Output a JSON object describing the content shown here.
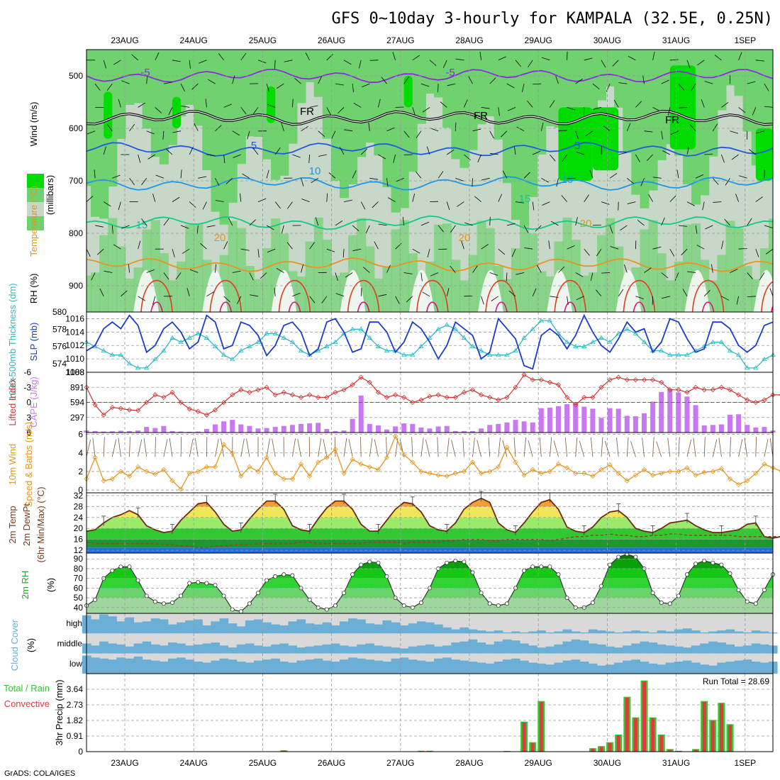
{
  "page": {
    "title": "GFS 0~10day 3-hourly for KAMPALA (32.5E, 0.25N)",
    "credit": "GrADS: COLA/IGES"
  },
  "colors": {
    "rh_dark": "#00dc00",
    "rh_mid": "#6fd26f",
    "rh_light": "#c8d8c8",
    "rh_dry": "#eef5ee",
    "t_minus5": "#8a2be2",
    "t_5": "#1e5adc",
    "t_10": "#1e96e6",
    "t_15": "#14c88c",
    "t_20": "#e6961e",
    "t_25": "#e03c1e",
    "t_30": "#dc1478",
    "slp": "#1a3ccc",
    "thickness": "#30b8c8",
    "lifted": "#d23232",
    "cape": "#c878f0",
    "wind": "#e6961e",
    "barb": "#7a5a3a",
    "cloud": "#6baed6",
    "cloud_bg": "#d9d9d9",
    "precip_total": "#32c832",
    "precip_conv": "#dc3c3c"
  },
  "chart_data": [
    {
      "id": "upper-air",
      "type": "heatmap",
      "ylabel_rh": "RH (%)",
      "ylabel_temp": "Temperature (°C)",
      "ylabel_wind": "Wind (m/s)",
      "ylabel_axis": "(millibars)",
      "x_top_labels": [
        "23AUG",
        "24AUG",
        "25AUG",
        "26AUG",
        "27AUG",
        "28AUG",
        "29AUG",
        "30AUG",
        "31AUG",
        "1SEP"
      ],
      "y_ticks": [
        500,
        600,
        700,
        800,
        900
      ],
      "ylim": [
        450,
        950
      ],
      "isotherms": [
        {
          "label": "-5",
          "color_key": "t_minus5",
          "base_mb": 500
        },
        {
          "label": "FR",
          "color_key": "fr",
          "base_mb": 580
        },
        {
          "label": "5",
          "color_key": "t_5",
          "base_mb": 640
        },
        {
          "label": "10",
          "color_key": "t_10",
          "base_mb": 705
        },
        {
          "label": "15",
          "color_key": "t_15",
          "base_mb": 780
        },
        {
          "label": "20",
          "color_key": "t_20",
          "base_mb": 860
        }
      ],
      "contour_labels": [
        "-5",
        "-5",
        "FR",
        "FR",
        "FR",
        "5",
        "5",
        "10",
        "10",
        "15",
        "15",
        "20",
        "20",
        "20"
      ]
    },
    {
      "id": "slp-thickness",
      "type": "line",
      "ylabel_thickness": "1000-500mb Thickness (dm)",
      "ylabel_slp": "SLP (mb)",
      "left_ticks": [
        574,
        576,
        578,
        580
      ],
      "right_ticks": [
        1008,
        1010,
        1012,
        1014,
        1016
      ],
      "slp_ylim": [
        1008,
        1017
      ],
      "thickness_ylim": [
        573,
        580
      ],
      "slp_values": [
        1011.2,
        1012,
        1014.5,
        1015.5,
        1014.5,
        1016.5,
        1015,
        1011,
        1012,
        1014.5,
        1015.5,
        1014,
        1011.5,
        1012.5,
        1016.5,
        1015.5,
        1011.5,
        1012,
        1015.5,
        1015,
        1013.5,
        1010.5,
        1012,
        1015,
        1015.5,
        1014,
        1010.5,
        1011.5,
        1015.5,
        1016,
        1014,
        1011,
        1011.5,
        1015.5,
        1015.5,
        1014,
        1011,
        1012.5,
        1015.5,
        1014.5,
        1012.5,
        1010,
        1012,
        1015.5,
        1014.5,
        1013.5,
        1010,
        1011,
        1016,
        1014.5,
        1013,
        1009,
        1008.5,
        1013.5,
        1014.5,
        1013.5,
        1011.5,
        1013.5,
        1016.5,
        1014,
        1012,
        1011,
        1013,
        1015.5,
        1014,
        1014.5,
        1011,
        1012.5,
        1016,
        1015.5,
        1013,
        1011,
        1011.5,
        1015.5,
        1015.5,
        1014.5,
        1012,
        1011,
        1012,
        1015,
        1015.5
      ],
      "thickness_values": [
        576.5,
        576,
        575.5,
        575,
        575,
        574,
        573.5,
        573.5,
        574.5,
        575.5,
        577,
        576.5,
        577,
        577.5,
        577,
        576,
        575,
        574.5,
        575.5,
        576,
        576.5,
        577.5,
        577.5,
        577,
        576.5,
        575.5,
        575,
        575.5,
        576,
        576.5,
        577.5,
        578,
        578,
        577,
        576,
        575.5,
        575.5,
        575,
        575,
        576,
        577,
        578,
        578.5,
        578,
        577,
        576,
        575.5,
        575,
        575,
        575,
        575.5,
        577,
        578,
        579,
        579,
        577.5,
        576.5,
        576,
        576,
        576.5,
        577,
        576.5,
        577.5,
        578,
        577.5,
        576.5,
        575.5,
        575.5,
        575,
        575,
        575,
        575.5,
        576,
        576.5,
        576.5,
        575.5,
        575,
        573.5,
        573.5,
        574.5,
        575
      ]
    },
    {
      "id": "cape-lifted",
      "type": "bar",
      "ylabel_lifted": "Lifted Index",
      "ylabel_cape": "CAPE (J/kg)",
      "left_ticks": [
        "-6",
        "-3",
        "0",
        "3",
        "6"
      ],
      "right_ticks": [
        "297",
        "594",
        "891",
        "1188"
      ],
      "cape_ylim": [
        0,
        1188
      ],
      "cape_values": [
        40,
        30,
        20,
        25,
        35,
        30,
        40,
        110,
        90,
        130,
        30,
        20,
        15,
        20,
        70,
        160,
        220,
        250,
        160,
        130,
        80,
        90,
        110,
        130,
        150,
        170,
        180,
        190,
        70,
        30,
        40,
        270,
        730,
        170,
        140,
        60,
        120,
        180,
        170,
        100,
        80,
        120,
        130,
        30,
        30,
        30,
        80,
        150,
        170,
        200,
        250,
        220,
        200,
        480,
        490,
        520,
        560,
        570,
        510,
        470,
        290,
        480,
        470,
        330,
        320,
        380,
        610,
        800,
        860,
        790,
        710,
        540,
        140,
        150,
        160,
        350,
        360,
        150,
        100,
        110,
        40,
        60,
        80,
        110
      ],
      "lifted_values": [
        -3,
        0.5,
        2.5,
        1,
        1.2,
        1.5,
        1.6,
        0,
        -1.5,
        -1,
        -2,
        0,
        1.3,
        1.8,
        2.5,
        1.5,
        0,
        -1.5,
        -2.5,
        -2,
        -2.5,
        -3,
        -1.5,
        -2,
        -1.5,
        -1,
        -1.5,
        -1,
        -1,
        -2,
        -2.5,
        -3.5,
        -5,
        -4,
        -2,
        -1,
        -1.5,
        -1,
        0,
        -0.5,
        -1.2,
        -1.5,
        -1,
        -1,
        -2,
        -2.5,
        -1.5,
        -1,
        -0.5,
        -1,
        -3,
        -5.5,
        -4.5,
        -4.5,
        -4,
        -3.5,
        -1,
        0.5,
        -1,
        -1,
        -3,
        -4.5,
        -5,
        -4.5,
        -4.5,
        -4.5,
        -4.5,
        -4,
        -2.5,
        -2.5,
        -2,
        -3,
        -2.5,
        -2.5,
        -3,
        -2.5,
        -1.5,
        -0.5,
        0,
        -0.5,
        -1.5,
        -1.5,
        -1,
        -1,
        0
      ]
    },
    {
      "id": "wind10m",
      "type": "line",
      "ylabel_wind": "10m Wind",
      "ylabel_speed": "Speed & Barbs (m/s)",
      "left_ticks": [
        0,
        2,
        4,
        6
      ],
      "ylim": [
        -0.3,
        6.2
      ],
      "speed_values": [
        1.2,
        3.5,
        1.0,
        1.2,
        2.0,
        1.5,
        2.5,
        2.0,
        1.7,
        2.2,
        1.0,
        0.1,
        1.8,
        2.0,
        2.5,
        2.5,
        4.9,
        4.0,
        1.5,
        2.5,
        2.0,
        3.5,
        1.8,
        1.2,
        1.2,
        2.8,
        1.5,
        3.0,
        3.5,
        4.4,
        1.8,
        3.3,
        2.8,
        2.5,
        2.2,
        3.5,
        5.8,
        3.8,
        3.0,
        2.0,
        1.8,
        1.6,
        1.5,
        1.8,
        2.0,
        3.0,
        1.8,
        2.0,
        2.5,
        4.6,
        3.0,
        1.6,
        2.2,
        1.8,
        2.0,
        2.8,
        2.4,
        1.8,
        1.8,
        1.5,
        2.2,
        2.7,
        1.8,
        1.0,
        1.6,
        2.2,
        1.6,
        1.8,
        2.0,
        2.0,
        2.4,
        1.6,
        1.9,
        2.0,
        2.3,
        1.2,
        0.6,
        1.0,
        1.8,
        2.8,
        2.4,
        2.0,
        1.5
      ]
    },
    {
      "id": "temp2m",
      "type": "area",
      "ylabel_temp": "2m Temp",
      "ylabel_dew": "2m DewPt",
      "ylabel_minmax": "(6hr Min/Max) (°C)",
      "left_ticks": [
        12,
        16,
        20,
        24,
        28,
        32
      ],
      "ylim": [
        11,
        33
      ],
      "temp_values": [
        19,
        19.5,
        22,
        24,
        25,
        26.5,
        25,
        21,
        19.5,
        18.5,
        19,
        23,
        26,
        29,
        29.5,
        26,
        21.5,
        19,
        19.5,
        23.5,
        27,
        30,
        30,
        27,
        21,
        19.5,
        19,
        23.5,
        27.5,
        30,
        30,
        27,
        21.5,
        19,
        19,
        23,
        27,
        29.5,
        29,
        26,
        21,
        19.5,
        19,
        22,
        27,
        29.5,
        31,
        29.5,
        22,
        19.5,
        18.5,
        22,
        26,
        29.5,
        30.5,
        27,
        20.5,
        19,
        18.5,
        20.5,
        24,
        26,
        26.5,
        24,
        20,
        19,
        18.5,
        20,
        22,
        22.5,
        23,
        21,
        19.5,
        18.5,
        18.5,
        19,
        19.5,
        21.5,
        22,
        17,
        16.5,
        17,
        22
      ],
      "dew_values": [
        15,
        14.5,
        14.5,
        14.5,
        14.5,
        14.5,
        14.5,
        14.5,
        14.5,
        14,
        14,
        13.5,
        13.5,
        13,
        13,
        13.5,
        13.5,
        14,
        14,
        14,
        14.5,
        14.5,
        14.5,
        14.5,
        14.5,
        15,
        15,
        14.5,
        14.5,
        14.5,
        14.5,
        14.5,
        14.5,
        15,
        15,
        15,
        15,
        14.5,
        15,
        15,
        15,
        15,
        15.5,
        15.5,
        16,
        16,
        16,
        15.5,
        15.5,
        16,
        16,
        16,
        16,
        16,
        15.5,
        16,
        16.5,
        17,
        17,
        17.5,
        17.5,
        18,
        17.5,
        17.5,
        17,
        17,
        17.5,
        17.5,
        18,
        18,
        17.5,
        17.5,
        17.5,
        17.5,
        17.5,
        17.5,
        17,
        17,
        17,
        17,
        17,
        17,
        17.5
      ]
    },
    {
      "id": "rh2m",
      "type": "area",
      "ylabel_rh": "2m RH",
      "ylabel_unit": "(%)",
      "left_ticks": [
        40,
        50,
        60,
        70,
        80,
        90
      ],
      "ylim": [
        34,
        96
      ],
      "rh_values": [
        42,
        48,
        70,
        78,
        82,
        82,
        68,
        52,
        46,
        44,
        45,
        52,
        65,
        66,
        65,
        63,
        52,
        38,
        36,
        44,
        55,
        68,
        72,
        74,
        73,
        60,
        48,
        40,
        38,
        42,
        55,
        74,
        84,
        87,
        86,
        72,
        50,
        42,
        40,
        45,
        60,
        80,
        86,
        88,
        87,
        76,
        55,
        44,
        42,
        44,
        60,
        78,
        82,
        82,
        82,
        74,
        50,
        40,
        40,
        45,
        62,
        84,
        92,
        95,
        92,
        80,
        55,
        45,
        44,
        52,
        74,
        85,
        88,
        86,
        84,
        75,
        58,
        46,
        44,
        58,
        74,
        86,
        92,
        90,
        72
      ]
    },
    {
      "id": "cloud",
      "type": "heatmap",
      "ylabel_cloud": "Cloud Cover",
      "ylabel_unit": "(%)",
      "rows": [
        "high",
        "middle",
        "low"
      ],
      "high_values": [
        90,
        70,
        95,
        85,
        60,
        80,
        55,
        60,
        75,
        70,
        45,
        55,
        65,
        70,
        40,
        60,
        75,
        50,
        35,
        65,
        70,
        55,
        45,
        40,
        60,
        70,
        50,
        45,
        55,
        40,
        60,
        75,
        70,
        50,
        45,
        65,
        55,
        40,
        50,
        60,
        55,
        45,
        30,
        20,
        30,
        20,
        15,
        10,
        15,
        5,
        10,
        5,
        10,
        15,
        5,
        10,
        20,
        10,
        5,
        20,
        15,
        10,
        5,
        10,
        15,
        10,
        5,
        15,
        10,
        20,
        25,
        15,
        5,
        10,
        15,
        20,
        10,
        5,
        15,
        10,
        5,
        20,
        10
      ],
      "middle_values": [
        50,
        40,
        60,
        50,
        45,
        35,
        50,
        60,
        45,
        40,
        55,
        50,
        40,
        45,
        50,
        55,
        40,
        30,
        45,
        50,
        40,
        35,
        45,
        50,
        40,
        30,
        35,
        40,
        45,
        50,
        40,
        35,
        45,
        50,
        40,
        35,
        30,
        25,
        35,
        40,
        45,
        35,
        40,
        55,
        60,
        70,
        55,
        45,
        60,
        70,
        65,
        50,
        40,
        30,
        35,
        45,
        60,
        70,
        65,
        50,
        45,
        35,
        30,
        40,
        50,
        60,
        55,
        45,
        40,
        35,
        30,
        40,
        50,
        60,
        55,
        45,
        35,
        40,
        50,
        45,
        40,
        35,
        30
      ],
      "low_values": [
        90,
        80,
        75,
        70,
        80,
        75,
        85,
        70,
        65,
        60,
        75,
        80,
        70,
        60,
        55,
        65,
        75,
        70,
        60,
        55,
        65,
        70,
        75,
        60,
        55,
        65,
        70,
        75,
        65,
        60,
        70,
        80,
        75,
        70,
        65,
        60,
        75,
        80,
        70,
        65,
        60,
        75,
        80,
        70,
        65,
        60,
        55,
        50,
        60,
        70,
        75,
        65,
        55,
        50,
        45,
        55,
        65,
        70,
        60,
        50,
        40,
        45,
        55,
        65,
        70,
        60,
        50,
        45,
        55,
        60,
        65,
        55,
        45,
        40,
        55,
        60,
        65,
        70,
        60,
        55,
        60,
        65,
        70
      ]
    },
    {
      "id": "precip",
      "type": "bar",
      "ylabel_total": "Total / Rain",
      "ylabel_conv": "Convective",
      "ylabel_axis": "3hr Precip (mm)",
      "run_total_label": "Run Total = 28.69",
      "left_ticks": [
        "0",
        "0.91",
        "1.82",
        "2.73",
        "3.64"
      ],
      "ylim": [
        0,
        4.55
      ],
      "x_bottom_labels": [
        "23AUG",
        "24AUG",
        "25AUG",
        "26AUG",
        "27AUG",
        "28AUG",
        "29AUG",
        "30AUG",
        "31AUG",
        "1SEP"
      ],
      "total_values": [
        0,
        0,
        0,
        0,
        0,
        0,
        0,
        0,
        0,
        0,
        0,
        0,
        0,
        0,
        0,
        0,
        0,
        0,
        0,
        0,
        0,
        0,
        0,
        0.08,
        0,
        0,
        0,
        0,
        0,
        0,
        0,
        0,
        0,
        0,
        0,
        0,
        0,
        0,
        0,
        0.05,
        0.05,
        0,
        0,
        0,
        0,
        0,
        0,
        0,
        0,
        0.04,
        0,
        1.75,
        0.55,
        2.95,
        0,
        0,
        0,
        0,
        0,
        0.2,
        0.32,
        0.55,
        1.0,
        3.2,
        2.0,
        4.15,
        2.0,
        1.0,
        0.15,
        0.05,
        0,
        0.15,
        2.95,
        1.85,
        2.85,
        1.6,
        0,
        0,
        0,
        0,
        0,
        0,
        0,
        0.12,
        0.25
      ],
      "conv_values": [
        0,
        0,
        0,
        0,
        0,
        0,
        0,
        0,
        0,
        0,
        0,
        0,
        0,
        0,
        0,
        0,
        0,
        0,
        0,
        0,
        0,
        0,
        0,
        0.06,
        0,
        0,
        0,
        0,
        0,
        0,
        0,
        0,
        0,
        0,
        0,
        0,
        0,
        0,
        0,
        0.04,
        0.04,
        0,
        0,
        0,
        0,
        0,
        0,
        0,
        0,
        0.03,
        0,
        1.7,
        0.5,
        2.9,
        0,
        0,
        0,
        0,
        0,
        0.18,
        0.3,
        0.5,
        0.95,
        3.15,
        1.95,
        4.1,
        1.95,
        0.95,
        0.12,
        0.04,
        0,
        0.12,
        2.9,
        1.8,
        2.8,
        1.55,
        0,
        0,
        0,
        0,
        0,
        0,
        0,
        0.1,
        0.22
      ]
    }
  ]
}
